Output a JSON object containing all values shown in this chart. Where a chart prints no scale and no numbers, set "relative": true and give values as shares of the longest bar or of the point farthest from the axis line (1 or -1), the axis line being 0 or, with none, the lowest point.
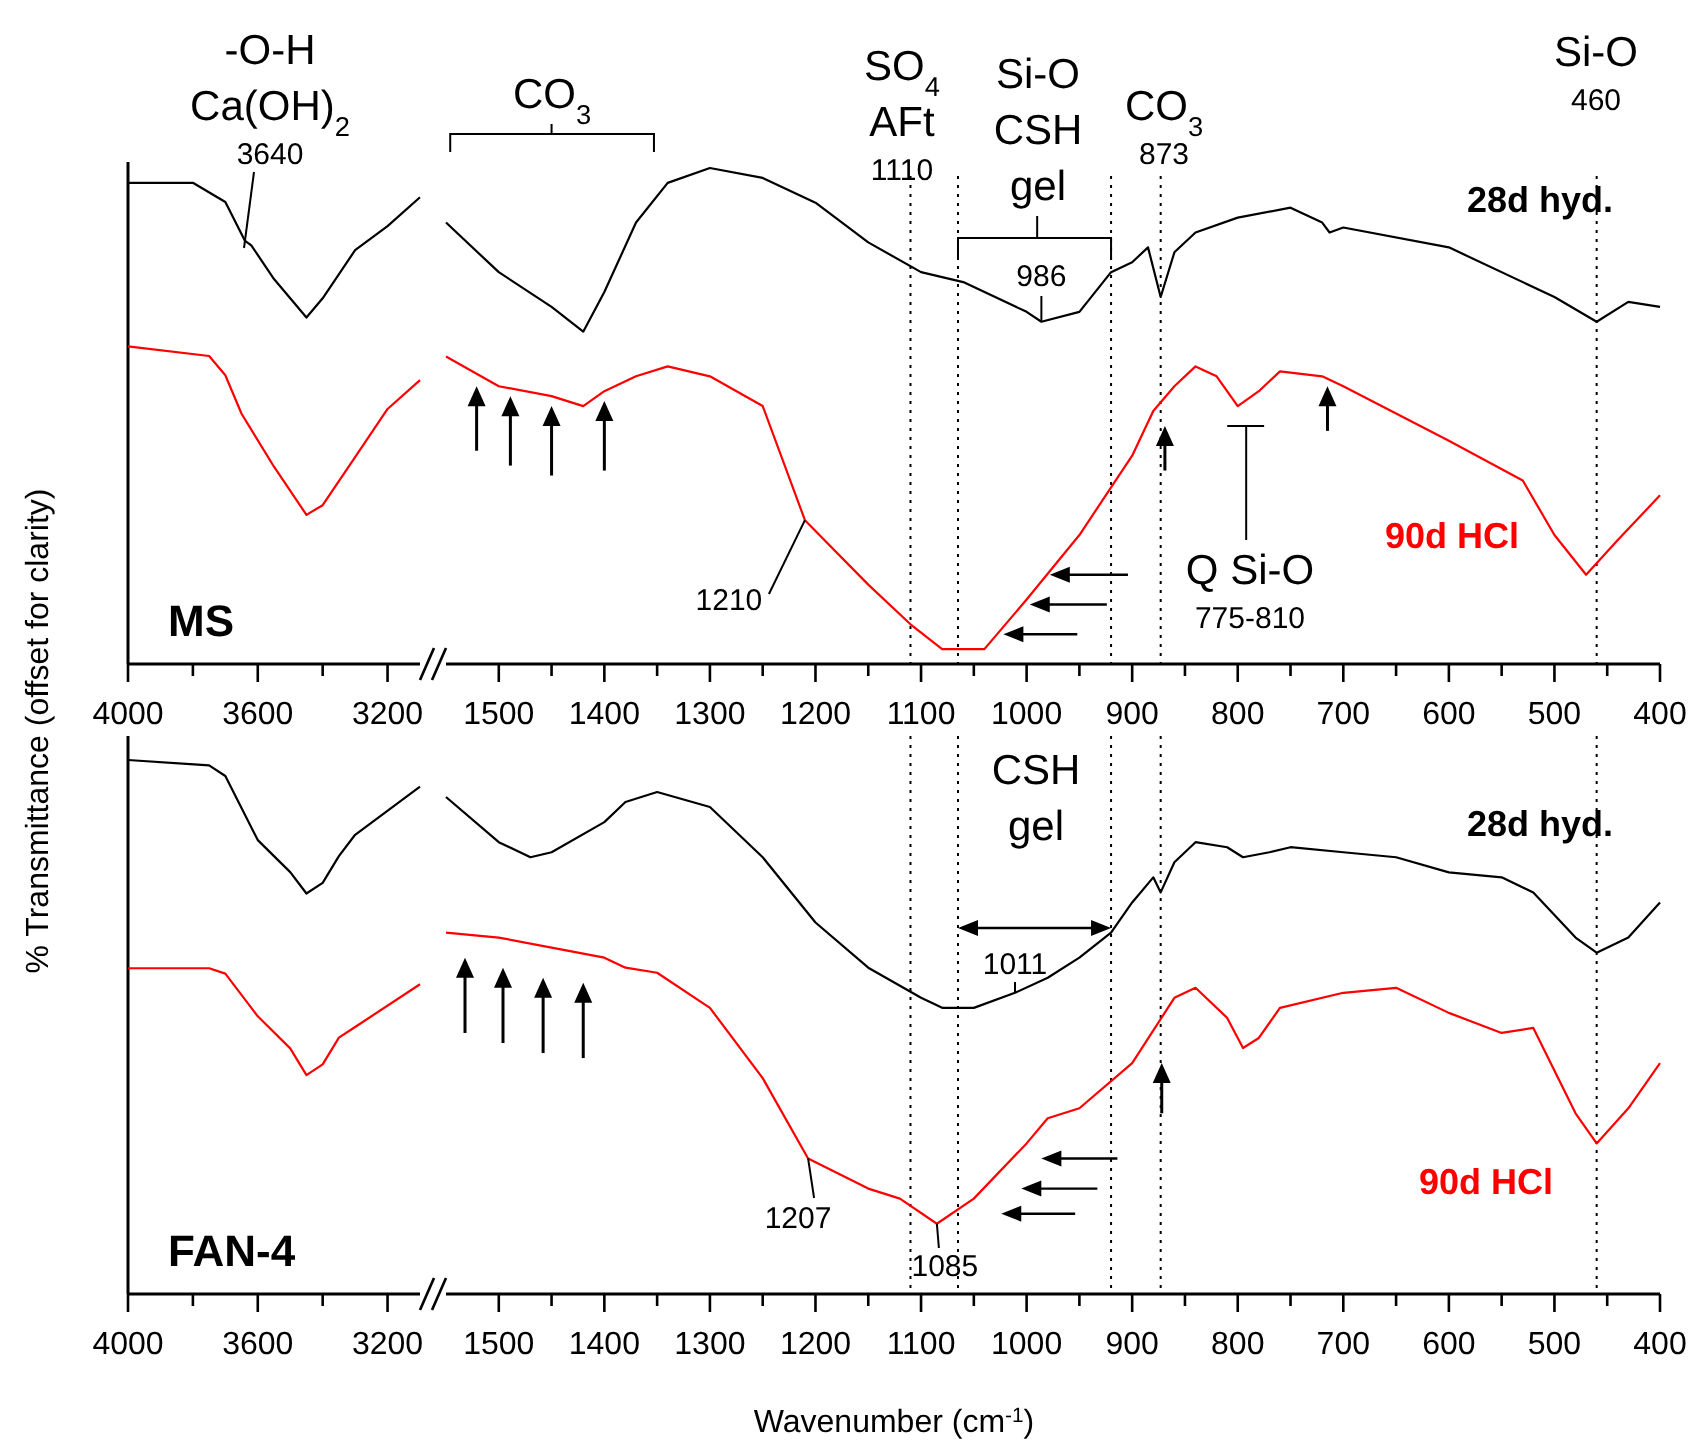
{
  "chart_data": [
    {
      "type": "line",
      "title": "MS",
      "ylabel": "% Transmittance (offset for clarity)",
      "relative": true,
      "xlim": [
        4000,
        3100
      ],
      "xticks": [
        4000,
        {
          "value": 3800,
          "label": null
        },
        3600,
        {
          "value": 3400,
          "label": null
        },
        3200
      ],
      "series": [
        {
          "color": "#000000",
          "x": [
            4000,
            3800,
            3700,
            3640,
            3620,
            3550,
            3450,
            3400,
            3300,
            3200,
            3100
          ],
          "values": [
            1,
            1,
            0.96,
            0.88,
            0.87,
            0.8,
            0.72,
            0.76,
            0.86,
            0.91,
            0.97
          ]
        },
        {
          "color": "#ff0000",
          "x": [
            4000,
            3750,
            3700,
            3650,
            3550,
            3450,
            3400,
            3300,
            3200,
            3100
          ],
          "values": [
            0.66,
            0.64,
            0.6,
            0.52,
            0.41,
            0.31,
            0.33,
            0.43,
            0.53,
            0.59
          ]
        }
      ],
      "annotations": [
        "-O-H\nCa(OH)$_{2}$\n3640"
      ]
    },
    {
      "type": "line",
      "relative": true,
      "xlim": [
        1550,
        400
      ],
      "xticks": [
        1500,
        {
          "value": 1450,
          "label": null
        },
        1400,
        {
          "value": 1350,
          "label": null
        },
        1300,
        {
          "value": 1250,
          "label": null
        },
        1200,
        {
          "value": 1150,
          "label": null
        },
        1100,
        {
          "value": 1050,
          "label": null
        },
        1000,
        {
          "value": 950,
          "label": null
        },
        900,
        {
          "value": 850,
          "label": null
        },
        800,
        {
          "value": 750,
          "label": null
        },
        700,
        {
          "value": 650,
          "label": null
        },
        600,
        {
          "value": 550,
          "label": null
        },
        500,
        {
          "value": 450,
          "label": null
        },
        400
      ],
      "series": [
        {
          "name": "28d hyd.",
          "color": "#000000",
          "x": [
            1550,
            1500,
            1450,
            1420,
            1400,
            1370,
            1340,
            1300,
            1250,
            1200,
            1150,
            1100,
            1060,
            1000,
            986,
            950,
            920,
            900,
            885,
            873,
            860,
            840,
            800,
            750,
            720,
            713,
            700,
            600,
            500,
            460,
            430,
            400
          ],
          "values": [
            0.89,
            0.79,
            0.72,
            0.67,
            0.75,
            0.89,
            0.97,
            1,
            0.98,
            0.93,
            0.85,
            0.79,
            0.77,
            0.71,
            0.69,
            0.71,
            0.79,
            0.81,
            0.84,
            0.74,
            0.83,
            0.87,
            0.9,
            0.92,
            0.89,
            0.87,
            0.88,
            0.84,
            0.74,
            0.69,
            0.73,
            0.72
          ]
        },
        {
          "name": "90d HCl",
          "color": "#ff0000",
          "x": [
            1550,
            1500,
            1450,
            1420,
            1400,
            1370,
            1340,
            1300,
            1250,
            1210,
            1150,
            1110,
            1080,
            1040,
            1000,
            950,
            900,
            880,
            860,
            840,
            820,
            800,
            780,
            760,
            720,
            700,
            600,
            530,
            500,
            470,
            440,
            400
          ],
          "values": [
            0.62,
            0.56,
            0.54,
            0.52,
            0.55,
            0.58,
            0.6,
            0.58,
            0.52,
            0.29,
            0.16,
            0.08,
            0.03,
            0.03,
            0.13,
            0.26,
            0.42,
            0.51,
            0.56,
            0.6,
            0.58,
            0.52,
            0.55,
            0.59,
            0.58,
            0.56,
            0.45,
            0.37,
            0.26,
            0.18,
            0.25,
            0.34
          ]
        }
      ],
      "ref_lines": [
        {
          "axis": "x",
          "value": 1110,
          "line_style": "dotted"
        },
        {
          "axis": "x",
          "value": 1065,
          "line_style": "dotted"
        },
        {
          "axis": "x",
          "value": 920,
          "line_style": "dotted"
        },
        {
          "axis": "x",
          "value": 873,
          "line_style": "dotted"
        },
        {
          "axis": "x",
          "value": 460,
          "line_style": "dotted"
        }
      ],
      "annotations": [
        "CO$_{3}$",
        "SO$_{4}$\nAFt\n1110",
        "Si-O\nCSH\ngel",
        {
          "text": "986",
          "x": 986,
          "y": 0.69
        },
        "CO$_{3}$\n873",
        "Si-O\n460",
        {
          "text": "1210",
          "x": 1210,
          "y": 0.29
        },
        "Q Si-O\n775-810"
      ]
    },
    {
      "type": "line",
      "title": "FAN-4",
      "relative": true,
      "xlim": [
        4000,
        3100
      ],
      "xticks": [
        4000,
        {
          "value": 3800,
          "label": null
        },
        3600,
        {
          "value": 3400,
          "label": null
        },
        3200
      ],
      "series": [
        {
          "color": "#000000",
          "x": [
            4000,
            3750,
            3700,
            3600,
            3500,
            3450,
            3400,
            3350,
            3300,
            3100
          ],
          "values": [
            1,
            0.99,
            0.97,
            0.85,
            0.79,
            0.75,
            0.77,
            0.82,
            0.86,
            0.95
          ]
        },
        {
          "color": "#ff0000",
          "x": [
            4000,
            3750,
            3700,
            3600,
            3500,
            3450,
            3400,
            3350,
            3300,
            3100
          ],
          "values": [
            0.61,
            0.61,
            0.6,
            0.52,
            0.46,
            0.41,
            0.43,
            0.48,
            0.5,
            0.58
          ]
        }
      ]
    },
    {
      "type": "line",
      "xlabel": "Wavenumber (cm$^{-1}$)",
      "relative": true,
      "xlim": [
        1550,
        400
      ],
      "xticks": [
        1500,
        {
          "value": 1450,
          "label": null
        },
        1400,
        {
          "value": 1350,
          "label": null
        },
        1300,
        {
          "value": 1250,
          "label": null
        },
        1200,
        {
          "value": 1150,
          "label": null
        },
        1100,
        {
          "value": 1050,
          "label": null
        },
        1000,
        {
          "value": 950,
          "label": null
        },
        900,
        {
          "value": 850,
          "label": null
        },
        800,
        {
          "value": 750,
          "label": null
        },
        700,
        {
          "value": 650,
          "label": null
        },
        600,
        {
          "value": 550,
          "label": null
        },
        500,
        {
          "value": 450,
          "label": null
        },
        400
      ],
      "series": [
        {
          "name": "28d hyd.",
          "color": "#000000",
          "x": [
            1550,
            1500,
            1470,
            1450,
            1400,
            1380,
            1350,
            1300,
            1250,
            1200,
            1150,
            1100,
            1080,
            1050,
            1011,
            980,
            950,
            920,
            900,
            880,
            873,
            860,
            840,
            810,
            795,
            770,
            750,
            700,
            650,
            600,
            550,
            520,
            480,
            460,
            430,
            400
          ],
          "values": [
            0.99,
            0.9,
            0.87,
            0.88,
            0.94,
            0.98,
            1,
            0.97,
            0.87,
            0.74,
            0.65,
            0.59,
            0.57,
            0.57,
            0.6,
            0.63,
            0.67,
            0.72,
            0.78,
            0.83,
            0.8,
            0.86,
            0.9,
            0.89,
            0.87,
            0.88,
            0.89,
            0.88,
            0.87,
            0.84,
            0.83,
            0.8,
            0.71,
            0.68,
            0.71,
            0.78
          ]
        },
        {
          "name": "90d HCl",
          "color": "#ff0000",
          "x": [
            1550,
            1500,
            1450,
            1400,
            1380,
            1350,
            1300,
            1250,
            1207,
            1150,
            1120,
            1085,
            1050,
            1000,
            980,
            950,
            900,
            860,
            840,
            810,
            795,
            780,
            760,
            700,
            650,
            600,
            550,
            520,
            480,
            460,
            430,
            400
          ],
          "values": [
            0.72,
            0.71,
            0.69,
            0.67,
            0.65,
            0.64,
            0.57,
            0.43,
            0.27,
            0.21,
            0.19,
            0.14,
            0.19,
            0.3,
            0.35,
            0.37,
            0.46,
            0.59,
            0.61,
            0.55,
            0.49,
            0.51,
            0.57,
            0.6,
            0.61,
            0.56,
            0.52,
            0.53,
            0.36,
            0.3,
            0.37,
            0.46
          ]
        }
      ],
      "ref_lines": [
        {
          "axis": "x",
          "value": 1110,
          "line_style": "dotted"
        },
        {
          "axis": "x",
          "value": 1065,
          "line_style": "dotted"
        },
        {
          "axis": "x",
          "value": 920,
          "line_style": "dotted"
        },
        {
          "axis": "x",
          "value": 873,
          "line_style": "dotted"
        },
        {
          "axis": "x",
          "value": 460,
          "line_style": "dotted"
        }
      ],
      "annotations": [
        "CSH\ngel",
        {
          "text": "1011",
          "x": 1011,
          "y": 0.6
        },
        {
          "text": "1207",
          "x": 1207,
          "y": 0.27
        },
        {
          "text": "1085",
          "x": 1085,
          "y": 0.14
        }
      ]
    }
  ]
}
